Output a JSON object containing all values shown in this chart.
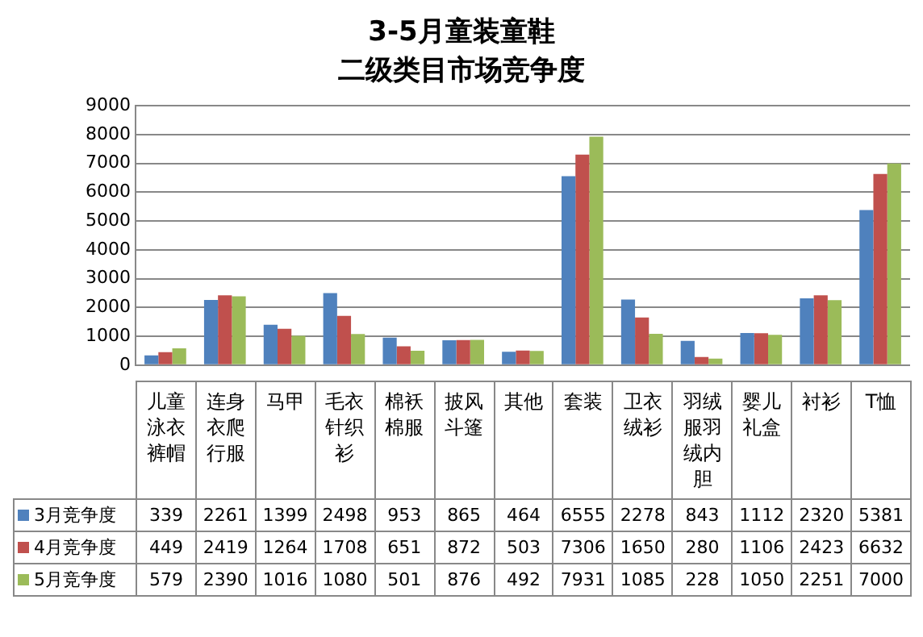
{
  "chart_data": {
    "type": "bar",
    "title": "3-5月童装童鞋",
    "subtitle": "二级类目市场竞争度",
    "categories": [
      "儿童泳衣裤帽",
      "连身衣爬行服",
      "马甲",
      "毛衣针织衫",
      "棉袄棉服",
      "披风斗篷",
      "其他",
      "套装",
      "卫衣绒衫",
      "羽绒服羽绒内胆",
      "婴儿礼盒",
      "衬衫",
      "T恤"
    ],
    "series": [
      {
        "name": "3月竞争度",
        "color": "#4f81bd",
        "values": [
          339,
          2261,
          1399,
          2498,
          953,
          865,
          464,
          6555,
          2278,
          843,
          1112,
          2320,
          5381
        ]
      },
      {
        "name": "4月竞争度",
        "color": "#c0504d",
        "values": [
          449,
          2419,
          1264,
          1708,
          651,
          872,
          503,
          7306,
          1650,
          280,
          1106,
          2423,
          6632
        ]
      },
      {
        "name": "5月竞争度",
        "color": "#9bbb59",
        "values": [
          579,
          2390,
          1016,
          1080,
          501,
          876,
          492,
          7931,
          1085,
          228,
          1050,
          2251,
          7000
        ]
      }
    ],
    "ylim": [
      0,
      9000
    ],
    "yticks": [
      0,
      1000,
      2000,
      3000,
      4000,
      5000,
      6000,
      7000,
      8000,
      9000
    ],
    "grid": "y",
    "legend": "bottom",
    "data_labels": true
  }
}
